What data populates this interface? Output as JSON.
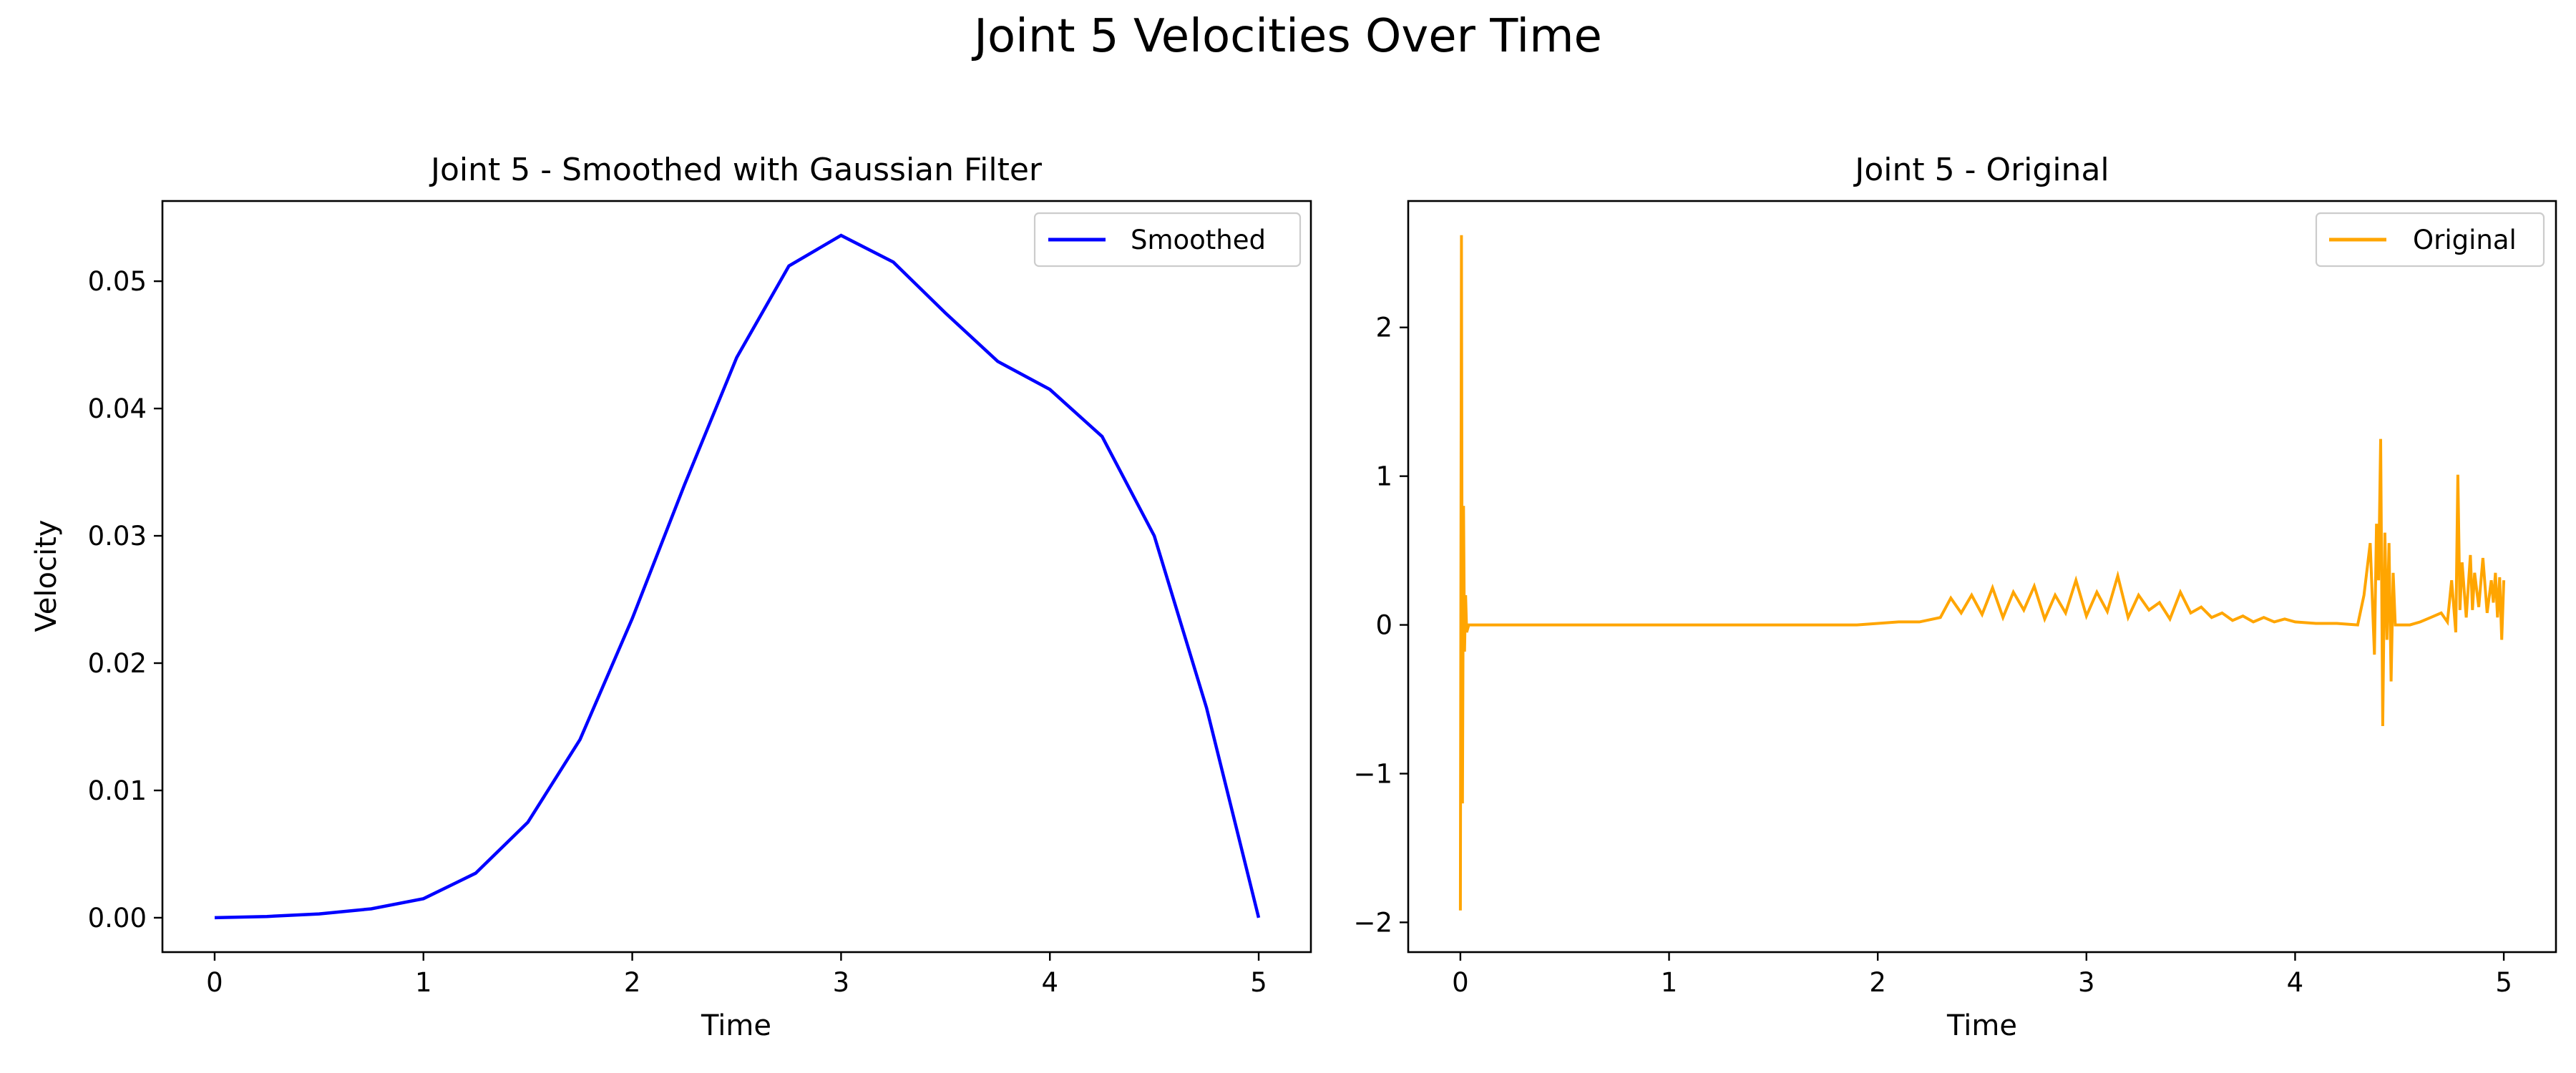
{
  "figure": {
    "suptitle": "Joint 5 Velocities Over Time"
  },
  "chart_data": [
    {
      "type": "line",
      "title": "Joint 5 - Smoothed with Gaussian Filter",
      "xlabel": "Time",
      "ylabel": "Velocity",
      "xlim": [
        -0.25,
        5.25
      ],
      "ylim": [
        -0.0027,
        0.0563
      ],
      "xticks": [
        0,
        1,
        2,
        3,
        4,
        5
      ],
      "xtick_labels": [
        "0",
        "1",
        "2",
        "3",
        "4",
        "5"
      ],
      "yticks": [
        0,
        0.01,
        0.02,
        0.03,
        0.04,
        0.05
      ],
      "ytick_labels": [
        "0.00",
        "0.01",
        "0.02",
        "0.03",
        "0.04",
        "0.05"
      ],
      "grid": false,
      "legend": {
        "position": "upper-right"
      },
      "series": [
        {
          "name": "Smoothed",
          "color": "#0000ff",
          "x": [
            0,
            0.25,
            0.5,
            0.75,
            1.0,
            1.25,
            1.5,
            1.75,
            2.0,
            2.25,
            2.5,
            2.75,
            3.0,
            3.25,
            3.5,
            3.75,
            4.0,
            4.25,
            4.5,
            4.75,
            5.0
          ],
          "y": [
            0.0,
            0.0001,
            0.0003,
            0.0007,
            0.0015,
            0.0035,
            0.0075,
            0.014,
            0.0235,
            0.034,
            0.044,
            0.0512,
            0.0536,
            0.0515,
            0.0475,
            0.0437,
            0.0415,
            0.0378,
            0.03,
            0.0165,
            0.0
          ]
        }
      ]
    },
    {
      "type": "line",
      "title": "Joint 5 - Original",
      "xlabel": "Time",
      "ylabel": "",
      "xlim": [
        -0.25,
        5.25
      ],
      "ylim": [
        -2.2,
        2.85
      ],
      "xticks": [
        0,
        1,
        2,
        3,
        4,
        5
      ],
      "xtick_labels": [
        "0",
        "1",
        "2",
        "3",
        "4",
        "5"
      ],
      "yticks": [
        -2,
        -1,
        0,
        1,
        2
      ],
      "ytick_labels": [
        "−2",
        "−1",
        "0",
        "1",
        "2"
      ],
      "grid": false,
      "legend": {
        "position": "upper-right"
      },
      "series": [
        {
          "name": "Original",
          "color": "#ffa500",
          "x": [
            0,
            0.005,
            0.01,
            0.015,
            0.02,
            0.025,
            0.03,
            0.04,
            0.06,
            0.1,
            0.5,
            1.0,
            1.5,
            1.9,
            2.0,
            2.1,
            2.2,
            2.3,
            2.35,
            2.4,
            2.45,
            2.5,
            2.55,
            2.6,
            2.65,
            2.7,
            2.75,
            2.8,
            2.85,
            2.9,
            2.95,
            3.0,
            3.05,
            3.1,
            3.15,
            3.2,
            3.25,
            3.3,
            3.35,
            3.4,
            3.45,
            3.5,
            3.55,
            3.6,
            3.65,
            3.7,
            3.75,
            3.8,
            3.85,
            3.9,
            3.95,
            4.0,
            4.1,
            4.2,
            4.3,
            4.33,
            4.36,
            4.38,
            4.39,
            4.4,
            4.41,
            4.42,
            4.43,
            4.44,
            4.45,
            4.46,
            4.47,
            4.48,
            4.5,
            4.55,
            4.6,
            4.65,
            4.7,
            4.73,
            4.75,
            4.77,
            4.78,
            4.79,
            4.8,
            4.82,
            4.84,
            4.85,
            4.86,
            4.88,
            4.9,
            4.92,
            4.94,
            4.95,
            4.96,
            4.97,
            4.98,
            4.99,
            5.0
          ],
          "y": [
            -1.92,
            2.62,
            -1.2,
            0.8,
            -0.18,
            0.2,
            -0.05,
            0.0,
            0.0,
            0.0,
            0.0,
            0.0,
            0.0,
            0.0,
            0.01,
            0.02,
            0.02,
            0.05,
            0.18,
            0.08,
            0.2,
            0.07,
            0.25,
            0.05,
            0.22,
            0.1,
            0.26,
            0.04,
            0.2,
            0.08,
            0.3,
            0.06,
            0.22,
            0.09,
            0.33,
            0.05,
            0.2,
            0.1,
            0.15,
            0.04,
            0.22,
            0.08,
            0.12,
            0.05,
            0.08,
            0.03,
            0.06,
            0.02,
            0.05,
            0.02,
            0.04,
            0.02,
            0.01,
            0.01,
            0.0,
            0.2,
            0.55,
            -0.2,
            0.68,
            0.3,
            1.25,
            -0.68,
            0.62,
            -0.1,
            0.55,
            -0.38,
            0.35,
            0.0,
            0.0,
            0.0,
            0.02,
            0.05,
            0.08,
            0.02,
            0.3,
            -0.05,
            1.01,
            0.1,
            0.42,
            0.05,
            0.47,
            0.1,
            0.35,
            0.12,
            0.45,
            0.08,
            0.3,
            0.15,
            0.35,
            0.05,
            0.32,
            -0.1,
            0.3
          ]
        }
      ]
    }
  ]
}
